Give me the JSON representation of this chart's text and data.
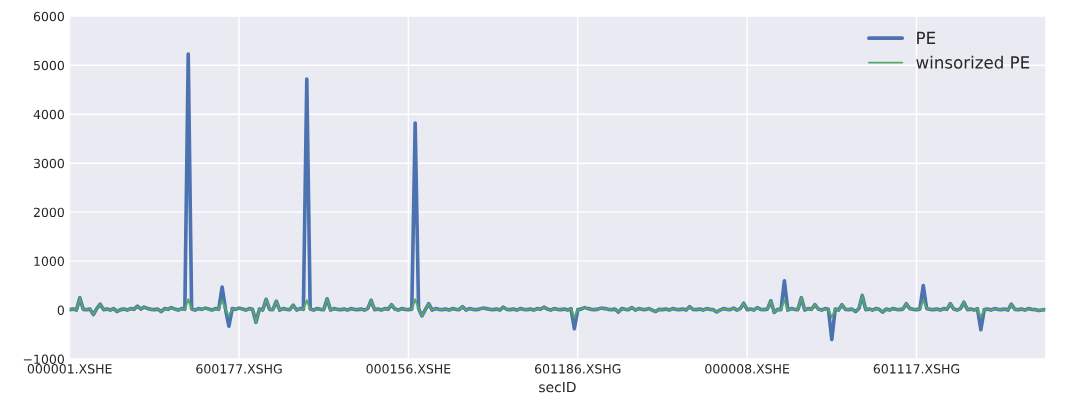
{
  "chart_data": {
    "type": "line",
    "xlabel": "secID",
    "categories": [
      "000001.XSHE",
      null,
      null,
      null,
      null,
      null,
      null,
      null,
      null,
      null,
      null,
      null,
      null,
      null,
      null,
      null,
      null,
      null,
      null,
      null,
      null,
      null,
      null,
      null,
      null,
      null,
      null,
      null,
      null,
      null,
      null,
      null,
      null,
      null,
      null,
      null,
      null,
      null,
      null,
      null,
      null,
      null,
      null,
      null,
      null,
      null,
      null,
      null,
      null,
      null,
      "600177.XSHG",
      null,
      null,
      null,
      null,
      null,
      null,
      null,
      null,
      null,
      null,
      null,
      null,
      null,
      null,
      null,
      null,
      null,
      null,
      null,
      null,
      null,
      null,
      null,
      null,
      null,
      null,
      null,
      null,
      null,
      null,
      null,
      null,
      null,
      null,
      null,
      null,
      null,
      null,
      null,
      null,
      null,
      null,
      null,
      null,
      null,
      null,
      null,
      null,
      null,
      "000156.XSHE",
      null,
      null,
      null,
      null,
      null,
      null,
      null,
      null,
      null,
      null,
      null,
      null,
      null,
      null,
      null,
      null,
      null,
      null,
      null,
      null,
      null,
      null,
      null,
      null,
      null,
      null,
      null,
      null,
      null,
      null,
      null,
      null,
      null,
      null,
      null,
      null,
      null,
      null,
      null,
      null,
      null,
      null,
      null,
      null,
      null,
      null,
      null,
      null,
      null,
      "601186.XSHG",
      null,
      null,
      null,
      null,
      null,
      null,
      null,
      null,
      null,
      null,
      null,
      null,
      null,
      null,
      null,
      null,
      null,
      null,
      null,
      null,
      null,
      null,
      null,
      null,
      null,
      null,
      null,
      null,
      null,
      null,
      null,
      null,
      null,
      null,
      null,
      null,
      null,
      null,
      null,
      null,
      null,
      null,
      null,
      null,
      null,
      null,
      null,
      null,
      null,
      "000008.XSHE",
      null,
      null,
      null,
      null,
      null,
      null,
      null,
      null,
      null,
      null,
      null,
      null,
      null,
      null,
      null,
      null,
      null,
      null,
      null,
      null,
      null,
      null,
      null,
      null,
      null,
      null,
      null,
      null,
      null,
      null,
      null,
      null,
      null,
      null,
      null,
      null,
      null,
      null,
      null,
      null,
      null,
      null,
      null,
      null,
      null,
      null,
      null,
      null,
      null,
      "601117.XSHG",
      null,
      null,
      null,
      null,
      null,
      null,
      null,
      null,
      null,
      null,
      null,
      null,
      null,
      null,
      null,
      null,
      null,
      null,
      null,
      null,
      null,
      null,
      null,
      null,
      null,
      null,
      null,
      null,
      null,
      null,
      null,
      null,
      null,
      null,
      null,
      null,
      null,
      null
    ],
    "series": [
      {
        "name": "PE",
        "color": "#4c72b0",
        "values": [
          10,
          20,
          0,
          250,
          15,
          10,
          20,
          -90,
          30,
          120,
          10,
          20,
          0,
          30,
          -30,
          10,
          20,
          0,
          30,
          15,
          80,
          20,
          60,
          30,
          15,
          10,
          20,
          -30,
          30,
          15,
          50,
          20,
          0,
          30,
          15,
          5230,
          20,
          0,
          30,
          15,
          40,
          20,
          0,
          30,
          15,
          470,
          20,
          -330,
          30,
          15,
          40,
          20,
          0,
          30,
          15,
          -250,
          20,
          0,
          220,
          15,
          10,
          180,
          0,
          30,
          15,
          10,
          100,
          0,
          30,
          15,
          4720,
          20,
          0,
          30,
          15,
          10,
          230,
          0,
          30,
          15,
          10,
          20,
          0,
          30,
          15,
          10,
          20,
          0,
          30,
          200,
          10,
          20,
          0,
          30,
          15,
          110,
          20,
          0,
          30,
          15,
          10,
          20,
          3820,
          30,
          -120,
          10,
          130,
          0,
          30,
          15,
          10,
          20,
          0,
          30,
          15,
          10,
          70,
          0,
          30,
          15,
          10,
          20,
          40,
          30,
          15,
          10,
          20,
          0,
          60,
          15,
          10,
          20,
          0,
          30,
          15,
          10,
          20,
          0,
          30,
          15,
          60,
          20,
          0,
          30,
          15,
          10,
          20,
          0,
          30,
          -380,
          10,
          20,
          50,
          30,
          15,
          10,
          20,
          40,
          30,
          15,
          10,
          20,
          -40,
          30,
          15,
          10,
          50,
          0,
          30,
          15,
          10,
          30,
          0,
          -30,
          15,
          10,
          20,
          0,
          30,
          15,
          10,
          20,
          0,
          70,
          15,
          10,
          20,
          0,
          30,
          15,
          10,
          -40,
          0,
          30,
          15,
          10,
          40,
          0,
          30,
          140,
          10,
          20,
          0,
          50,
          15,
          10,
          20,
          190,
          -50,
          15,
          10,
          600,
          0,
          30,
          15,
          10,
          250,
          0,
          30,
          15,
          110,
          20,
          0,
          30,
          15,
          -600,
          20,
          0,
          110,
          15,
          10,
          20,
          -30,
          30,
          300,
          10,
          20,
          0,
          30,
          15,
          -40,
          20,
          0,
          30,
          15,
          10,
          20,
          130,
          30,
          15,
          10,
          20,
          500,
          30,
          15,
          10,
          20,
          0,
          30,
          15,
          130,
          20,
          0,
          30,
          160,
          10,
          20,
          0,
          30,
          -400,
          10,
          20,
          0,
          30,
          15,
          10,
          20,
          0,
          120,
          15,
          10,
          20,
          0,
          30,
          15,
          10,
          -10,
          0,
          10
        ]
      },
      {
        "name": "winsorized PE",
        "color": "#55a868",
        "values": [
          10,
          20,
          0,
          250,
          15,
          10,
          20,
          -90,
          30,
          120,
          10,
          20,
          0,
          30,
          -30,
          10,
          20,
          0,
          30,
          15,
          80,
          20,
          60,
          30,
          15,
          10,
          20,
          -30,
          30,
          15,
          50,
          20,
          0,
          30,
          15,
          220,
          20,
          0,
          30,
          15,
          40,
          20,
          0,
          30,
          15,
          200,
          20,
          -130,
          30,
          15,
          40,
          20,
          0,
          30,
          15,
          -250,
          20,
          0,
          220,
          15,
          10,
          180,
          0,
          30,
          15,
          10,
          100,
          0,
          30,
          15,
          200,
          20,
          0,
          30,
          15,
          10,
          230,
          0,
          30,
          15,
          10,
          20,
          0,
          30,
          15,
          10,
          20,
          0,
          30,
          200,
          10,
          20,
          0,
          30,
          15,
          110,
          20,
          0,
          30,
          15,
          10,
          20,
          220,
          30,
          -120,
          10,
          130,
          0,
          30,
          15,
          10,
          20,
          0,
          30,
          15,
          10,
          70,
          0,
          30,
          15,
          10,
          20,
          40,
          30,
          15,
          10,
          20,
          0,
          60,
          15,
          10,
          20,
          0,
          30,
          15,
          10,
          20,
          0,
          30,
          15,
          60,
          20,
          0,
          30,
          15,
          10,
          20,
          0,
          30,
          -150,
          10,
          20,
          50,
          30,
          15,
          10,
          20,
          40,
          30,
          15,
          10,
          20,
          -40,
          30,
          15,
          10,
          50,
          0,
          30,
          15,
          10,
          30,
          0,
          -30,
          15,
          10,
          20,
          0,
          30,
          15,
          10,
          20,
          0,
          70,
          15,
          10,
          20,
          0,
          30,
          15,
          10,
          -40,
          0,
          30,
          15,
          10,
          40,
          0,
          30,
          140,
          10,
          20,
          0,
          50,
          15,
          10,
          20,
          190,
          -50,
          15,
          10,
          200,
          0,
          30,
          15,
          10,
          250,
          0,
          30,
          15,
          110,
          20,
          0,
          30,
          15,
          -150,
          20,
          0,
          110,
          15,
          10,
          20,
          -30,
          30,
          300,
          10,
          20,
          0,
          30,
          15,
          -40,
          20,
          0,
          30,
          15,
          10,
          20,
          130,
          30,
          15,
          10,
          20,
          200,
          30,
          15,
          10,
          20,
          0,
          30,
          15,
          130,
          20,
          0,
          30,
          160,
          10,
          20,
          0,
          30,
          -150,
          10,
          20,
          0,
          30,
          15,
          10,
          20,
          0,
          120,
          15,
          10,
          20,
          0,
          30,
          15,
          10,
          -10,
          0,
          10
        ]
      }
    ],
    "ylim": [
      -1000,
      6000
    ],
    "yticks": [
      {
        "value": -1000,
        "label": "−1000"
      },
      0,
      1000,
      2000,
      3000,
      4000,
      5000,
      6000
    ],
    "grid": true,
    "legend": "top right"
  }
}
